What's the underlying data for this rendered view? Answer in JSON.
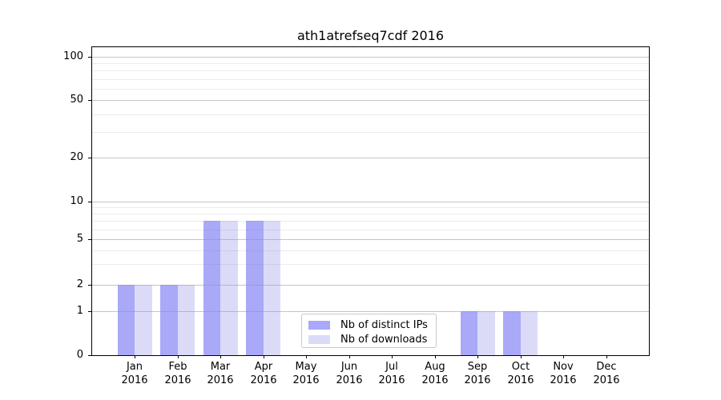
{
  "chart_data": {
    "type": "bar",
    "title": "ath1atrefseq7cdf 2016",
    "year": "2016",
    "months": [
      "Jan",
      "Feb",
      "Mar",
      "Apr",
      "May",
      "Jun",
      "Jul",
      "Aug",
      "Sep",
      "Oct",
      "Nov",
      "Dec"
    ],
    "series": [
      {
        "name": "Nb of distinct IPs",
        "color": "#a9a9f8",
        "values": [
          2,
          2,
          7,
          7,
          0,
          0,
          0,
          0,
          1,
          1,
          0,
          0
        ]
      },
      {
        "name": "Nb of downloads",
        "color": "#dbdbf8",
        "values": [
          2,
          2,
          7,
          7,
          0,
          0,
          0,
          0,
          1,
          1,
          0,
          0
        ]
      }
    ],
    "y_axis": {
      "scale": "log-like",
      "major_ticks": [
        0,
        1,
        2,
        5,
        10,
        20,
        50,
        100
      ],
      "minor_ticks": [
        3,
        4,
        6,
        7,
        8,
        9,
        30,
        40,
        60,
        70,
        80,
        90
      ],
      "ylim": [
        0,
        120
      ]
    },
    "x_axis": {
      "tick_label_format": "month over year, two lines"
    },
    "legend": {
      "position": "lower center",
      "entries": [
        "Nb of distinct IPs",
        "Nb of downloads"
      ]
    },
    "colors": {
      "bar_distinct_ips": "#a9a9f8",
      "bar_downloads": "#dbdbf8",
      "major_grid": "#c6c6c6",
      "minor_grid": "#ececec",
      "spine": "#000000",
      "legend_border": "#c9c9c9",
      "background": "#ffffff",
      "text": "#000000"
    }
  }
}
